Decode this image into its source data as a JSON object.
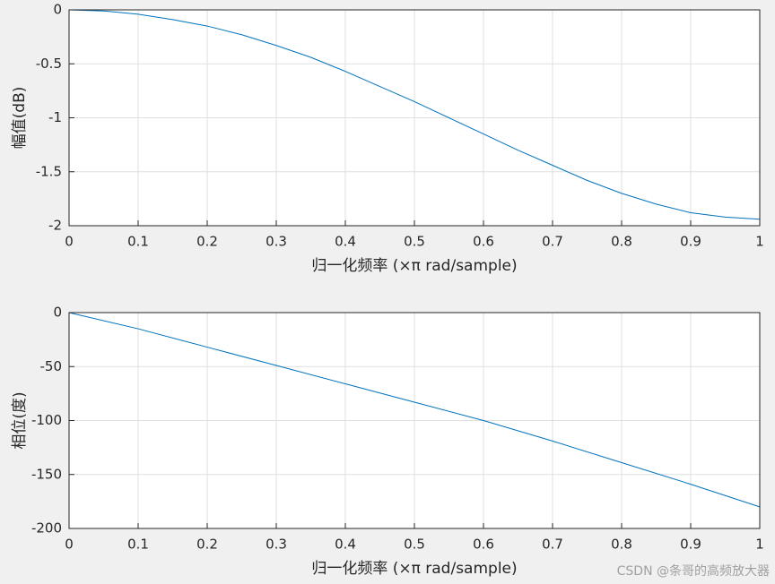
{
  "chart_data": [
    {
      "type": "line",
      "xlabel": "归一化频率 (×π rad/sample)",
      "ylabel": "幅值(dB)",
      "x": [
        0,
        0.05,
        0.1,
        0.15,
        0.2,
        0.25,
        0.3,
        0.35,
        0.4,
        0.45,
        0.5,
        0.55,
        0.6,
        0.65,
        0.7,
        0.75,
        0.8,
        0.85,
        0.9,
        0.95,
        1
      ],
      "series": [
        {
          "color": "#0072bd",
          "values": [
            0,
            -0.01,
            -0.04,
            -0.09,
            -0.15,
            -0.23,
            -0.33,
            -0.44,
            -0.57,
            -0.71,
            -0.85,
            -1.0,
            -1.15,
            -1.3,
            -1.44,
            -1.58,
            -1.7,
            -1.8,
            -1.88,
            -1.92,
            -1.94
          ]
        }
      ],
      "xlim": [
        0,
        1
      ],
      "ylim": [
        -2,
        0
      ],
      "xticks": [
        0,
        0.1,
        0.2,
        0.3,
        0.4,
        0.5,
        0.6,
        0.7,
        0.8,
        0.9,
        1
      ],
      "yticks": [
        0,
        -0.5,
        -1,
        -1.5,
        -2
      ],
      "grid": true
    },
    {
      "type": "line",
      "xlabel": "归一化频率 (×π rad/sample)",
      "ylabel": "相位(度)",
      "x": [
        0,
        0.1,
        0.2,
        0.3,
        0.4,
        0.5,
        0.6,
        0.7,
        0.8,
        0.9,
        1
      ],
      "series": [
        {
          "color": "#0072bd",
          "values": [
            0,
            -15,
            -32,
            -49,
            -66,
            -83,
            -100,
            -119,
            -139,
            -159,
            -180
          ]
        }
      ],
      "xlim": [
        0,
        1
      ],
      "ylim": [
        -200,
        0
      ],
      "xticks": [
        0,
        0.1,
        0.2,
        0.3,
        0.4,
        0.5,
        0.6,
        0.7,
        0.8,
        0.9,
        1
      ],
      "yticks": [
        0,
        -50,
        -100,
        -150,
        -200
      ],
      "grid": true
    }
  ],
  "watermark": "CSDN @条哥的高频放大器"
}
